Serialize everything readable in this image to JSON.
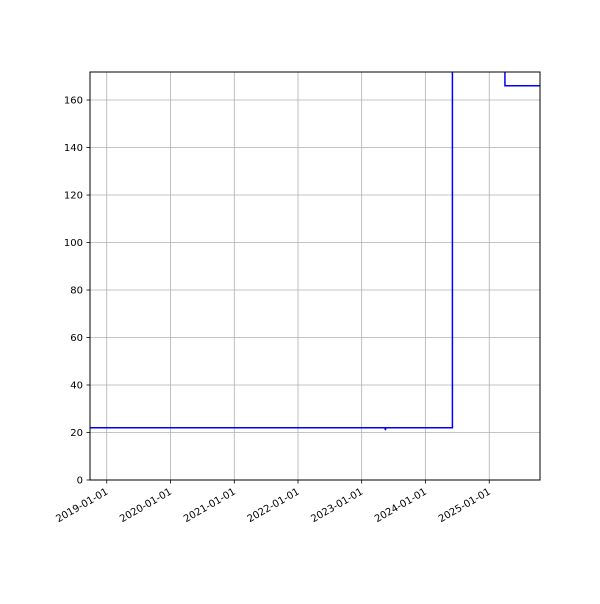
{
  "chart_data": {
    "type": "line",
    "title": "",
    "xlabel": "",
    "ylabel": "",
    "x_axis_type": "date",
    "xlim": [
      "2018-09-27",
      "2025-10-19"
    ],
    "ylim": [
      0,
      171.8
    ],
    "grid": true,
    "line_color": "#0000ff",
    "x_ticks": [
      "2019-01-01",
      "2020-01-01",
      "2021-01-01",
      "2022-01-01",
      "2023-01-01",
      "2024-01-01",
      "2025-01-01"
    ],
    "y_ticks": [
      0,
      20,
      40,
      60,
      80,
      100,
      120,
      140,
      160
    ],
    "series": [
      {
        "points": [
          {
            "x": "2018-09-27",
            "y": 22
          },
          {
            "x": "2023-05-15",
            "y": 22
          },
          {
            "x": "2023-05-17",
            "y": 21
          },
          {
            "x": "2023-05-19",
            "y": 22
          },
          {
            "x": "2024-06-04",
            "y": 22
          },
          {
            "x": "2024-06-04",
            "y": 200
          },
          {
            "x": "2025-04-01",
            "y": 200
          },
          {
            "x": "2025-04-01",
            "y": 166
          },
          {
            "x": "2025-10-19",
            "y": 166
          }
        ]
      }
    ]
  }
}
